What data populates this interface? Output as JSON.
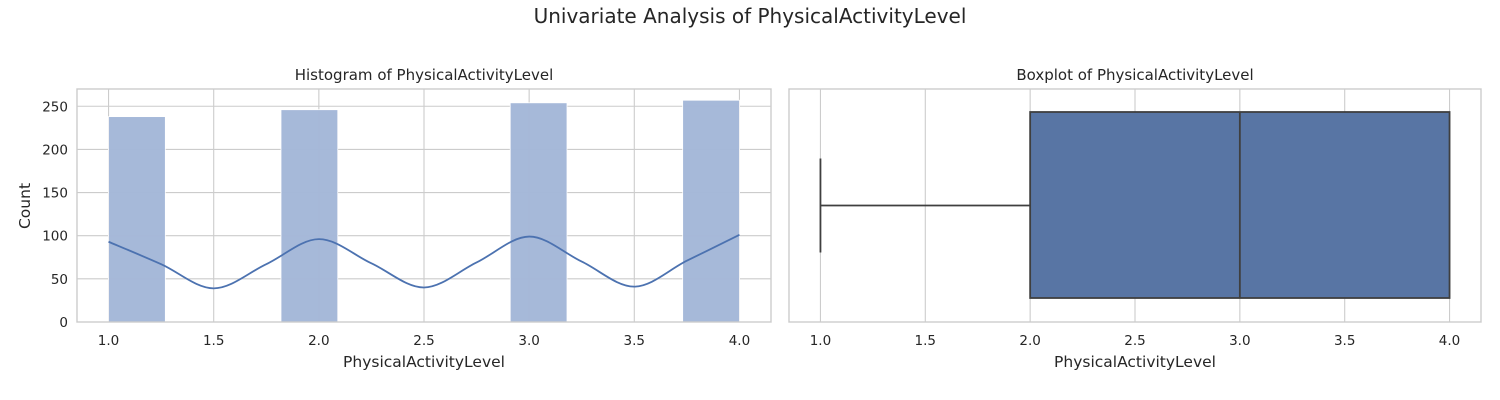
{
  "figure": {
    "title": "Univariate Analysis of PhysicalActivityLevel"
  },
  "chart_data": [
    {
      "type": "bar",
      "title": "Histogram of PhysicalActivityLevel",
      "xlabel": "PhysicalActivityLevel",
      "ylabel": "Count",
      "xlim": [
        0.85,
        4.15
      ],
      "ylim": [
        0,
        270
      ],
      "xticks": [
        "1.0",
        "1.5",
        "2.0",
        "2.5",
        "3.0",
        "3.5",
        "4.0"
      ],
      "yticks": [
        "0",
        "50",
        "100",
        "150",
        "200",
        "250"
      ],
      "bars": [
        {
          "x0": 1.0,
          "x1": 1.27,
          "value": 238
        },
        {
          "x0": 1.82,
          "x1": 2.09,
          "value": 246
        },
        {
          "x0": 2.91,
          "x1": 3.18,
          "value": 254
        },
        {
          "x0": 3.73,
          "x1": 4.0,
          "value": 257
        }
      ],
      "kde": {
        "x": [
          1.0,
          1.25,
          1.5,
          1.75,
          2.0,
          2.25,
          2.5,
          2.75,
          3.0,
          3.25,
          3.5,
          3.75,
          4.0
        ],
        "y": [
          93,
          67,
          39,
          67,
          96,
          68,
          40,
          69,
          99,
          70,
          41,
          71,
          101
        ]
      },
      "grid": true,
      "colors": {
        "bar": "#a5b8d9",
        "kde": "#4c72b0",
        "grid": "#cccccc",
        "frame": "#cccccc"
      }
    },
    {
      "type": "box",
      "title": "Boxplot of PhysicalActivityLevel",
      "xlabel": "PhysicalActivityLevel",
      "xlim": [
        0.85,
        4.15
      ],
      "xticks": [
        "1.0",
        "1.5",
        "2.0",
        "2.5",
        "3.0",
        "3.5",
        "4.0"
      ],
      "box": {
        "min": 1.0,
        "q1": 2.0,
        "median": 3.0,
        "q3": 4.0,
        "max": 4.0
      },
      "grid": true,
      "colors": {
        "box": "#5875a4",
        "line": "#3f3f3f",
        "grid": "#cccccc",
        "frame": "#cccccc"
      }
    }
  ]
}
